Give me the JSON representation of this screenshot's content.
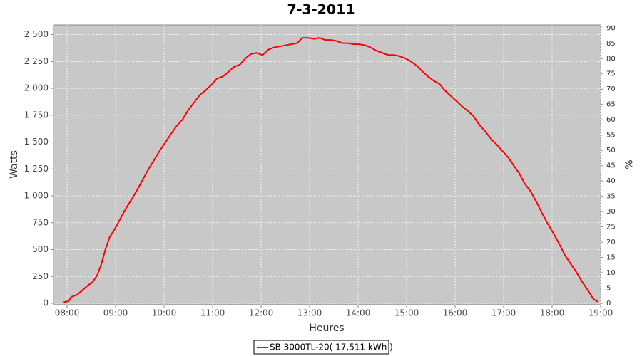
{
  "chart_data": {
    "type": "line",
    "title": "7-3-2011",
    "x_label": "Heures",
    "y_label": "Watts",
    "y2_label": "%",
    "x": [
      7.93,
      8.03,
      8.09,
      8.21,
      8.31,
      8.41,
      8.53,
      8.62,
      8.71,
      8.79,
      8.88,
      8.97,
      9.09,
      9.21,
      9.32,
      9.44,
      9.56,
      9.68,
      9.79,
      9.91,
      10.03,
      10.15,
      10.26,
      10.38,
      10.5,
      10.62,
      10.74,
      10.85,
      10.97,
      11.09,
      11.21,
      11.32,
      11.44,
      11.56,
      11.68,
      11.79,
      11.91,
      12.03,
      12.15,
      12.26,
      12.38,
      12.5,
      12.62,
      12.74,
      12.85,
      12.97,
      13.09,
      13.21,
      13.32,
      13.44,
      13.56,
      13.68,
      13.79,
      13.91,
      14.03,
      14.15,
      14.26,
      14.38,
      14.5,
      14.62,
      14.74,
      14.85,
      14.97,
      15.09,
      15.21,
      15.32,
      15.44,
      15.56,
      15.68,
      15.79,
      15.91,
      16.03,
      16.15,
      16.26,
      16.38,
      16.5,
      16.62,
      16.74,
      16.85,
      16.97,
      17.09,
      17.21,
      17.32,
      17.44,
      17.56,
      17.68,
      17.79,
      17.91,
      18.03,
      18.15,
      18.26,
      18.38,
      18.5,
      18.62,
      18.74,
      18.85,
      18.94
    ],
    "series": [
      {
        "name": "SB 3000TL-20( 17,511 kWh )",
        "color": "#ff0000",
        "values": [
          10,
          20,
          60,
          80,
          120,
          160,
          200,
          260,
          370,
          500,
          620,
          680,
          780,
          880,
          960,
          1050,
          1150,
          1250,
          1330,
          1420,
          1500,
          1580,
          1650,
          1710,
          1800,
          1870,
          1940,
          1980,
          2030,
          2090,
          2110,
          2150,
          2200,
          2220,
          2280,
          2320,
          2330,
          2310,
          2360,
          2380,
          2390,
          2400,
          2410,
          2420,
          2470,
          2470,
          2460,
          2470,
          2450,
          2450,
          2440,
          2420,
          2420,
          2410,
          2410,
          2400,
          2380,
          2350,
          2330,
          2310,
          2310,
          2300,
          2280,
          2250,
          2210,
          2160,
          2110,
          2070,
          2040,
          1980,
          1930,
          1880,
          1830,
          1790,
          1740,
          1660,
          1600,
          1530,
          1480,
          1420,
          1360,
          1280,
          1210,
          1110,
          1040,
          940,
          840,
          740,
          650,
          550,
          450,
          370,
          290,
          200,
          120,
          40,
          15
        ]
      }
    ],
    "xlim": [
      7.72,
      19.0
    ],
    "xticks": [
      {
        "value": 8,
        "label": "08:00"
      },
      {
        "value": 9,
        "label": "09:00"
      },
      {
        "value": 10,
        "label": "10:00"
      },
      {
        "value": 11,
        "label": "11:00"
      },
      {
        "value": 12,
        "label": "12:00"
      },
      {
        "value": 13,
        "label": "13:00"
      },
      {
        "value": 14,
        "label": "14:00"
      },
      {
        "value": 15,
        "label": "15:00"
      },
      {
        "value": 16,
        "label": "16:00"
      },
      {
        "value": 17,
        "label": "17:00"
      },
      {
        "value": 18,
        "label": "18:00"
      },
      {
        "value": 19,
        "label": "19:00"
      }
    ],
    "ylim": [
      0,
      2590
    ],
    "yticks": [
      0,
      250,
      500,
      750,
      {
        "value": 1000,
        "label": "1 000"
      },
      {
        "value": 1250,
        "label": "1 250"
      },
      {
        "value": 1500,
        "label": "1 500"
      },
      {
        "value": 1750,
        "label": "1 750"
      },
      {
        "value": 2000,
        "label": "2 000"
      },
      {
        "value": 2250,
        "label": "2 250"
      },
      {
        "value": 2500,
        "label": "2 500"
      }
    ],
    "y2lim": [
      0,
      91
    ],
    "y2ticks": [
      0,
      5,
      10,
      15,
      20,
      25,
      30,
      35,
      40,
      45,
      50,
      55,
      60,
      65,
      70,
      75,
      80,
      85,
      90
    ],
    "grid": true
  }
}
